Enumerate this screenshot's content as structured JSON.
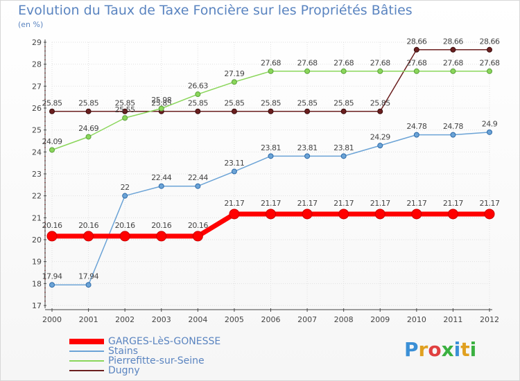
{
  "header": {
    "title": "Evolution du Taux de Taxe Foncière sur les Propriétés Bâties",
    "unit": "(en %)"
  },
  "logo": {
    "text": "Proxiti"
  },
  "chart_data": {
    "type": "line",
    "title": "Evolution du Taux de Taxe Foncière sur les Propriétés Bâties",
    "ylabel": "(en %)",
    "xlabel": "",
    "categories": [
      "2000",
      "2001",
      "2002",
      "2003",
      "2004",
      "2005",
      "2006",
      "2007",
      "2008",
      "2009",
      "2010",
      "2011",
      "2012"
    ],
    "ylim": [
      17,
      29
    ],
    "yticks": [
      "17",
      "18",
      "19",
      "20",
      "21",
      "22",
      "23",
      "24",
      "25",
      "26",
      "27",
      "28",
      "29"
    ],
    "legend_position": "bottom-left",
    "series": [
      {
        "name": "Dugny",
        "color": "#6b1f1f",
        "values": [
          25.85,
          25.85,
          25.85,
          25.85,
          25.85,
          25.85,
          25.85,
          25.85,
          25.85,
          25.85,
          28.66,
          28.66,
          28.66
        ],
        "labels": [
          "25.85",
          "25.85",
          "25.85",
          "25.85",
          "25.85",
          "25.85",
          "25.85",
          "25.85",
          "25.85",
          "25.85",
          "28.66",
          "28.66",
          "28.66"
        ]
      },
      {
        "name": "Pierrefitte-sur-Seine",
        "color": "#8ad65a",
        "values": [
          24.09,
          24.69,
          25.55,
          25.98,
          26.63,
          27.19,
          27.68,
          27.68,
          27.68,
          27.68,
          27.68,
          27.68,
          27.68
        ],
        "labels": [
          "24.09",
          "24.69",
          "25.55",
          "25.98",
          "26.63",
          "27.19",
          "27.68",
          "27.68",
          "27.68",
          "27.68",
          "27.68",
          "27.68",
          "27.68"
        ]
      },
      {
        "name": "Stains",
        "color": "#6ba3d6",
        "values": [
          17.94,
          17.94,
          22,
          22.44,
          22.44,
          23.11,
          23.81,
          23.81,
          23.81,
          24.29,
          24.78,
          24.78,
          24.9
        ],
        "labels": [
          "17.94",
          "17.94",
          "22",
          "22.44",
          "22.44",
          "23.11",
          "23.81",
          "23.81",
          "23.81",
          "24.29",
          "24.78",
          "24.78",
          "24.9"
        ]
      },
      {
        "name": "GARGES-LèS-GONESSE",
        "color": "#ff0000",
        "values": [
          20.16,
          20.16,
          20.16,
          20.16,
          20.16,
          21.17,
          21.17,
          21.17,
          21.17,
          21.17,
          21.17,
          21.17,
          21.17
        ],
        "labels": [
          "20.16",
          "20.16",
          "20.16",
          "20.16",
          "20.16",
          "21.17",
          "21.17",
          "21.17",
          "21.17",
          "21.17",
          "21.17",
          "21.17",
          "21.17"
        ]
      }
    ],
    "legend_order": [
      "GARGES-LèS-GONESSE",
      "Stains",
      "Pierrefitte-sur-Seine",
      "Dugny"
    ]
  }
}
